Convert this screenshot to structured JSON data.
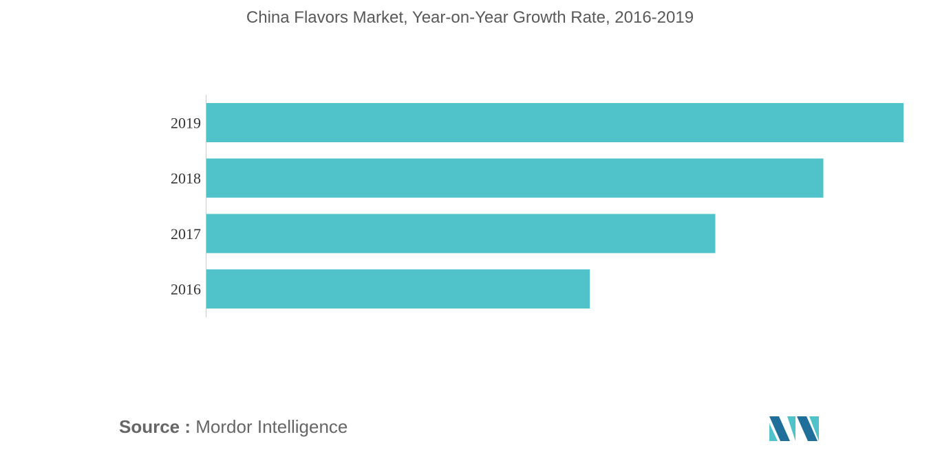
{
  "colors": {
    "bar": "#4fc3c9",
    "text": "#595959",
    "logo_dark": "#1f6f9a",
    "logo_light": "#4fc3c9"
  },
  "logo": {
    "icon": "mordor-intelligence-logo-icon"
  },
  "source": {
    "label": "Source :",
    "value": "Mordor Intelligence"
  },
  "chart_data": {
    "type": "bar",
    "orientation": "horizontal",
    "title": "China Flavors Market, Year-on-Year Growth Rate, 2016-2019",
    "categories": [
      "2019",
      "2018",
      "2017",
      "2016"
    ],
    "values": [
      100,
      88.5,
      73,
      55
    ],
    "xlim": [
      0,
      100
    ],
    "grid": false,
    "legend": "none"
  }
}
